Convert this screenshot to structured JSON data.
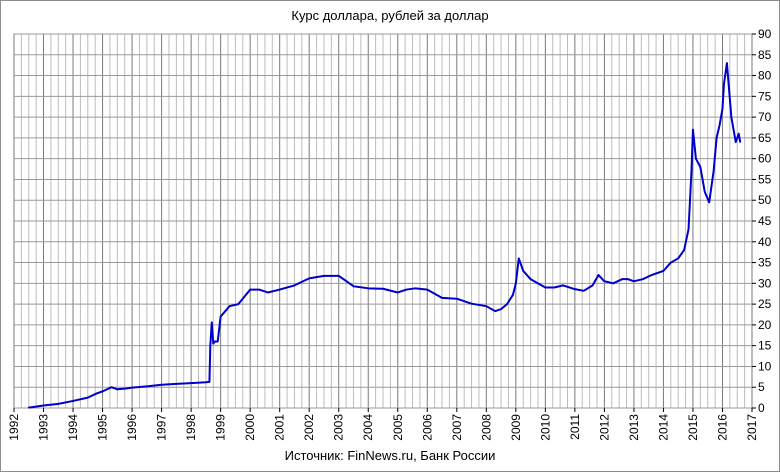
{
  "chart_data": {
    "type": "line",
    "title": "Курс доллара,  рублей  за доллар",
    "source": "Источник: FinNews.ru, Банк России",
    "xlabel": "",
    "ylabel": "",
    "xlim": [
      1992,
      2017
    ],
    "ylim": [
      0,
      90
    ],
    "x_ticks": [
      "1992",
      "1993",
      "1994",
      "1995",
      "1996",
      "1997",
      "1998",
      "1999",
      "2000",
      "2001",
      "2002",
      "2003",
      "2004",
      "2005",
      "2006",
      "2007",
      "2008",
      "2009",
      "2010",
      "2011",
      "2012",
      "2013",
      "2014",
      "2015",
      "2016",
      "2017"
    ],
    "y_ticks": [
      "0",
      "5",
      "10",
      "15",
      "20",
      "25",
      "30",
      "35",
      "40",
      "45",
      "50",
      "55",
      "60",
      "65",
      "70",
      "75",
      "80",
      "85",
      "90"
    ],
    "y_axis_side": "right",
    "grid": true,
    "line_color": "#0000cc",
    "series": [
      {
        "name": "",
        "x": [
          1992.5,
          1993.0,
          1993.5,
          1994.0,
          1994.5,
          1994.8,
          1995.0,
          1995.3,
          1995.5,
          1995.8,
          1996.0,
          1996.5,
          1997.0,
          1997.5,
          1998.0,
          1998.5,
          1998.62,
          1998.65,
          1998.7,
          1998.75,
          1998.8,
          1998.9,
          1999.0,
          1999.3,
          1999.6,
          2000.0,
          2000.3,
          2000.6,
          2001.0,
          2001.5,
          2002.0,
          2002.5,
          2003.0,
          2003.5,
          2004.0,
          2004.5,
          2005.0,
          2005.3,
          2005.6,
          2006.0,
          2006.5,
          2007.0,
          2007.5,
          2008.0,
          2008.3,
          2008.5,
          2008.7,
          2008.9,
          2009.0,
          2009.1,
          2009.25,
          2009.5,
          2009.75,
          2010.0,
          2010.3,
          2010.6,
          2011.0,
          2011.3,
          2011.6,
          2011.8,
          2012.0,
          2012.3,
          2012.6,
          2012.8,
          2013.0,
          2013.3,
          2013.6,
          2014.0,
          2014.25,
          2014.5,
          2014.7,
          2014.85,
          2014.95,
          2015.0,
          2015.1,
          2015.25,
          2015.4,
          2015.55,
          2015.7,
          2015.8,
          2015.9,
          2016.0,
          2016.05,
          2016.15,
          2016.3,
          2016.45,
          2016.55,
          2016.6
        ],
        "values": [
          0.1,
          0.6,
          1.0,
          1.7,
          2.5,
          3.5,
          4.0,
          5.0,
          4.5,
          4.7,
          4.9,
          5.2,
          5.6,
          5.8,
          6.0,
          6.2,
          6.3,
          15.0,
          20.6,
          15.5,
          16.0,
          16.0,
          22.0,
          24.5,
          25.0,
          28.5,
          28.5,
          27.8,
          28.5,
          29.5,
          31.2,
          31.8,
          31.8,
          29.3,
          28.8,
          28.7,
          27.8,
          28.5,
          28.8,
          28.5,
          26.5,
          26.3,
          25.1,
          24.5,
          23.3,
          23.8,
          25.0,
          27.2,
          30.0,
          36.0,
          33.0,
          31.0,
          30.0,
          29.0,
          29.0,
          29.5,
          28.6,
          28.2,
          29.5,
          32.0,
          30.5,
          30.0,
          31.0,
          31.0,
          30.5,
          31.0,
          32.0,
          33.0,
          35.0,
          36.0,
          38.0,
          43.0,
          57.0,
          67.0,
          60.0,
          58.0,
          52.0,
          49.5,
          57.0,
          65.0,
          68.0,
          72.0,
          78.0,
          83.0,
          70.0,
          64.0,
          66.0,
          64.0
        ]
      }
    ]
  }
}
